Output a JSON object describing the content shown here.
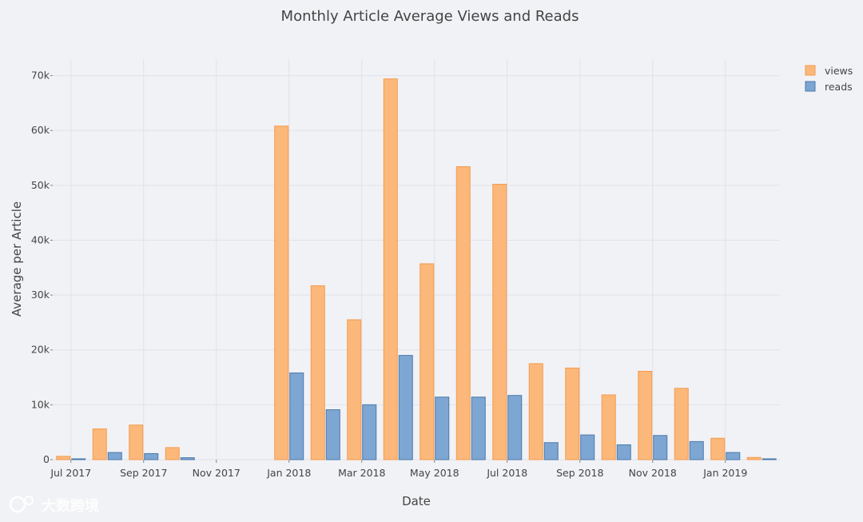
{
  "chart_data": {
    "type": "bar",
    "title": "Monthly Article Average Views and Reads",
    "xlabel": "Date",
    "ylabel": "Average per Article",
    "ylim": [
      0,
      73000
    ],
    "yticks": [
      {
        "value": 0,
        "label": "0"
      },
      {
        "value": 10000,
        "label": "10k"
      },
      {
        "value": 20000,
        "label": "20k"
      },
      {
        "value": 30000,
        "label": "30k"
      },
      {
        "value": 40000,
        "label": "40k"
      },
      {
        "value": 50000,
        "label": "50k"
      },
      {
        "value": 60000,
        "label": "60k"
      },
      {
        "value": 70000,
        "label": "70k"
      }
    ],
    "xticks": [
      {
        "index": 0,
        "label": "Jul 2017"
      },
      {
        "index": 2,
        "label": "Sep 2017"
      },
      {
        "index": 4,
        "label": "Nov 2017"
      },
      {
        "index": 6,
        "label": "Jan 2018"
      },
      {
        "index": 8,
        "label": "Mar 2018"
      },
      {
        "index": 10,
        "label": "May 2018"
      },
      {
        "index": 12,
        "label": "Jul 2018"
      },
      {
        "index": 14,
        "label": "Sep 2018"
      },
      {
        "index": 16,
        "label": "Nov 2018"
      },
      {
        "index": 18,
        "label": "Jan 2019"
      }
    ],
    "categories": [
      "Jul 2017",
      "Aug 2017",
      "Sep 2017",
      "Oct 2017",
      "Nov 2017",
      "Dec 2017",
      "Jan 2018",
      "Feb 2018",
      "Mar 2018",
      "Apr 2018",
      "May 2018",
      "Jun 2018",
      "Jul 2018",
      "Aug 2018",
      "Sep 2018",
      "Oct 2018",
      "Nov 2018",
      "Dec 2018",
      "Jan 2019",
      "Feb 2019"
    ],
    "series": [
      {
        "name": "views",
        "color": "#fbb87a",
        "stroke": "#f59a4d",
        "values": [
          600,
          5600,
          6300,
          2200,
          0,
          0,
          60800,
          31700,
          25500,
          69400,
          35700,
          53400,
          50200,
          17500,
          16700,
          11800,
          16100,
          13000,
          3900,
          400
        ]
      },
      {
        "name": "reads",
        "color": "#7ea6d3",
        "stroke": "#4a78aa",
        "values": [
          150,
          1300,
          1100,
          350,
          0,
          0,
          15800,
          9100,
          10000,
          19000,
          11400,
          11400,
          11700,
          3100,
          4500,
          2700,
          4400,
          3300,
          1300,
          150
        ]
      }
    ],
    "grid": true,
    "legend_position": "top-right"
  },
  "watermark": "大数跨境"
}
